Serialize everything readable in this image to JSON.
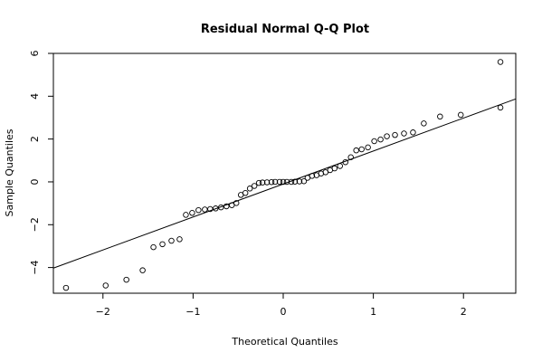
{
  "chart_data": {
    "type": "scatter",
    "title": "Residual Normal Q-Q Plot",
    "xlabel": "Theoretical Quantiles",
    "ylabel": "Sample Quantiles",
    "xlim": [
      -2.55,
      2.58
    ],
    "ylim": [
      -5.2,
      6.0
    ],
    "x_ticks": [
      -2,
      -1,
      0,
      1,
      2
    ],
    "y_ticks": [
      -4,
      -2,
      0,
      2,
      4,
      6
    ],
    "x_tick_labels": [
      "−2",
      "−1",
      "0",
      "1",
      "2"
    ],
    "y_tick_labels": [
      "−4",
      "−2",
      "0",
      "2",
      "4",
      "6"
    ],
    "grid": false,
    "reference_line": {
      "slope": 1.54,
      "intercept": -0.1
    },
    "points": [
      [
        -2.41,
        -4.95
      ],
      [
        -1.97,
        -4.84
      ],
      [
        -1.74,
        -4.57
      ],
      [
        -1.56,
        -4.13
      ],
      [
        -1.44,
        -3.05
      ],
      [
        -1.34,
        -2.91
      ],
      [
        -1.24,
        -2.75
      ],
      [
        -1.15,
        -2.68
      ],
      [
        -1.08,
        -1.54
      ],
      [
        -1.01,
        -1.45
      ],
      [
        -0.94,
        -1.32
      ],
      [
        -0.87,
        -1.29
      ],
      [
        -0.81,
        -1.27
      ],
      [
        -0.75,
        -1.24
      ],
      [
        -0.69,
        -1.19
      ],
      [
        -0.63,
        -1.14
      ],
      [
        -0.57,
        -1.09
      ],
      [
        -0.52,
        -0.99
      ],
      [
        -0.47,
        -0.61
      ],
      [
        -0.42,
        -0.52
      ],
      [
        -0.37,
        -0.31
      ],
      [
        -0.32,
        -0.19
      ],
      [
        -0.27,
        -0.05
      ],
      [
        -0.23,
        -0.03
      ],
      [
        -0.18,
        -0.02
      ],
      [
        -0.13,
        -0.01
      ],
      [
        -0.09,
        0.0
      ],
      [
        -0.04,
        0.0
      ],
      [
        0.0,
        0.0
      ],
      [
        0.04,
        0.0
      ],
      [
        0.09,
        0.0
      ],
      [
        0.13,
        0.01
      ],
      [
        0.18,
        0.02
      ],
      [
        0.23,
        0.03
      ],
      [
        0.27,
        0.19
      ],
      [
        0.32,
        0.28
      ],
      [
        0.37,
        0.31
      ],
      [
        0.42,
        0.39
      ],
      [
        0.47,
        0.45
      ],
      [
        0.52,
        0.55
      ],
      [
        0.57,
        0.63
      ],
      [
        0.63,
        0.74
      ],
      [
        0.69,
        0.92
      ],
      [
        0.75,
        1.15
      ],
      [
        0.81,
        1.47
      ],
      [
        0.87,
        1.52
      ],
      [
        0.94,
        1.61
      ],
      [
        1.01,
        1.9
      ],
      [
        1.08,
        1.98
      ],
      [
        1.15,
        2.13
      ],
      [
        1.24,
        2.19
      ],
      [
        1.34,
        2.26
      ],
      [
        1.44,
        2.31
      ],
      [
        1.56,
        2.73
      ],
      [
        1.74,
        3.05
      ],
      [
        1.97,
        3.13
      ],
      [
        2.41,
        3.47
      ],
      [
        2.41,
        5.6
      ]
    ]
  }
}
